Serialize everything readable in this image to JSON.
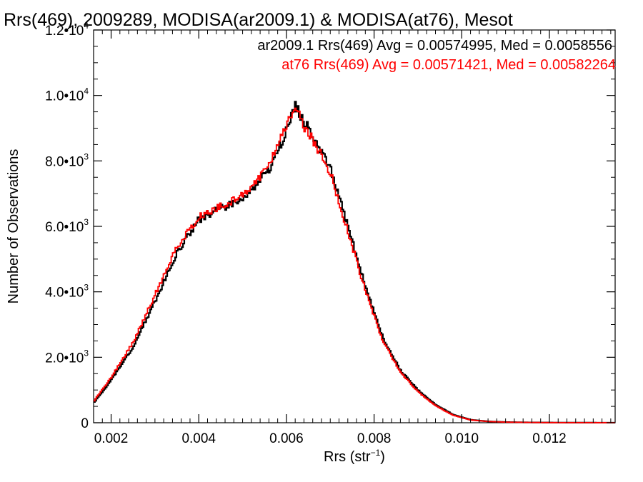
{
  "chart_data": {
    "type": "line",
    "title": "Rrs(469), 2009289, MODISA(ar2009.1) & MODISA(at76), Mesot",
    "xlabel": "Rrs (str",
    "xlabel_sup": "−1",
    "xlabel_end": ")",
    "ylabel": "Number of Observations",
    "xlim": [
      0.0016,
      0.0135
    ],
    "ylim": [
      0,
      12000
    ],
    "x_ticks": [
      {
        "value": 0.002,
        "label": "0.002"
      },
      {
        "value": 0.004,
        "label": "0.004"
      },
      {
        "value": 0.006,
        "label": "0.006"
      },
      {
        "value": 0.008,
        "label": "0.008"
      },
      {
        "value": 0.01,
        "label": "0.010"
      },
      {
        "value": 0.012,
        "label": "0.012"
      }
    ],
    "y_ticks": [
      {
        "value": 0,
        "mant": "0",
        "exp": ""
      },
      {
        "value": 2000,
        "mant": "2.0•10",
        "exp": "3"
      },
      {
        "value": 4000,
        "mant": "4.0•10",
        "exp": "3"
      },
      {
        "value": 6000,
        "mant": "6.0•10",
        "exp": "3"
      },
      {
        "value": 8000,
        "mant": "8.0•10",
        "exp": "3"
      },
      {
        "value": 10000,
        "mant": "1.0•10",
        "exp": "4"
      },
      {
        "value": 12000,
        "mant": "1.2•10",
        "exp": "4"
      }
    ],
    "legend": [
      {
        "text": "ar2009.1 Rrs(469) Avg = 0.00574995, Med = 0.0058556",
        "color": "#000000"
      },
      {
        "text": "at76 Rrs(469) Avg = 0.00571421, Med = 0.00582264",
        "color": "#ff0000"
      }
    ],
    "series": [
      {
        "color": "#000000",
        "x": [
          0.0016,
          0.002,
          0.0025,
          0.003,
          0.0035,
          0.004,
          0.0044,
          0.0048,
          0.0052,
          0.0056,
          0.0058,
          0.006,
          0.0062,
          0.0064,
          0.0066,
          0.007,
          0.0074,
          0.0078,
          0.0082,
          0.0086,
          0.009,
          0.0094,
          0.0098,
          0.0102,
          0.0106,
          0.011,
          0.0115,
          0.012,
          0.0125,
          0.013,
          0.0135
        ],
        "y": [
          600,
          1300,
          2300,
          3700,
          5200,
          6200,
          6500,
          6700,
          7100,
          7700,
          8300,
          8900,
          9700,
          9200,
          8800,
          7800,
          6000,
          4200,
          2600,
          1600,
          1000,
          550,
          250,
          90,
          40,
          20,
          10,
          5,
          3,
          2,
          1
        ]
      },
      {
        "color": "#ff0000",
        "x": [
          0.0016,
          0.002,
          0.0025,
          0.003,
          0.0035,
          0.004,
          0.0044,
          0.0048,
          0.0052,
          0.0056,
          0.0058,
          0.006,
          0.0062,
          0.0064,
          0.0066,
          0.007,
          0.0074,
          0.0078,
          0.0082,
          0.0086,
          0.009,
          0.0094,
          0.0098,
          0.0102,
          0.0106,
          0.011,
          0.0115,
          0.012,
          0.0125,
          0.013,
          0.0135
        ],
        "y": [
          650,
          1380,
          2450,
          3900,
          5350,
          6300,
          6550,
          6800,
          7200,
          7800,
          8500,
          9100,
          9700,
          9050,
          8650,
          7650,
          5850,
          4050,
          2500,
          1550,
          950,
          520,
          230,
          85,
          38,
          18,
          9,
          4,
          3,
          2,
          1
        ]
      }
    ]
  }
}
